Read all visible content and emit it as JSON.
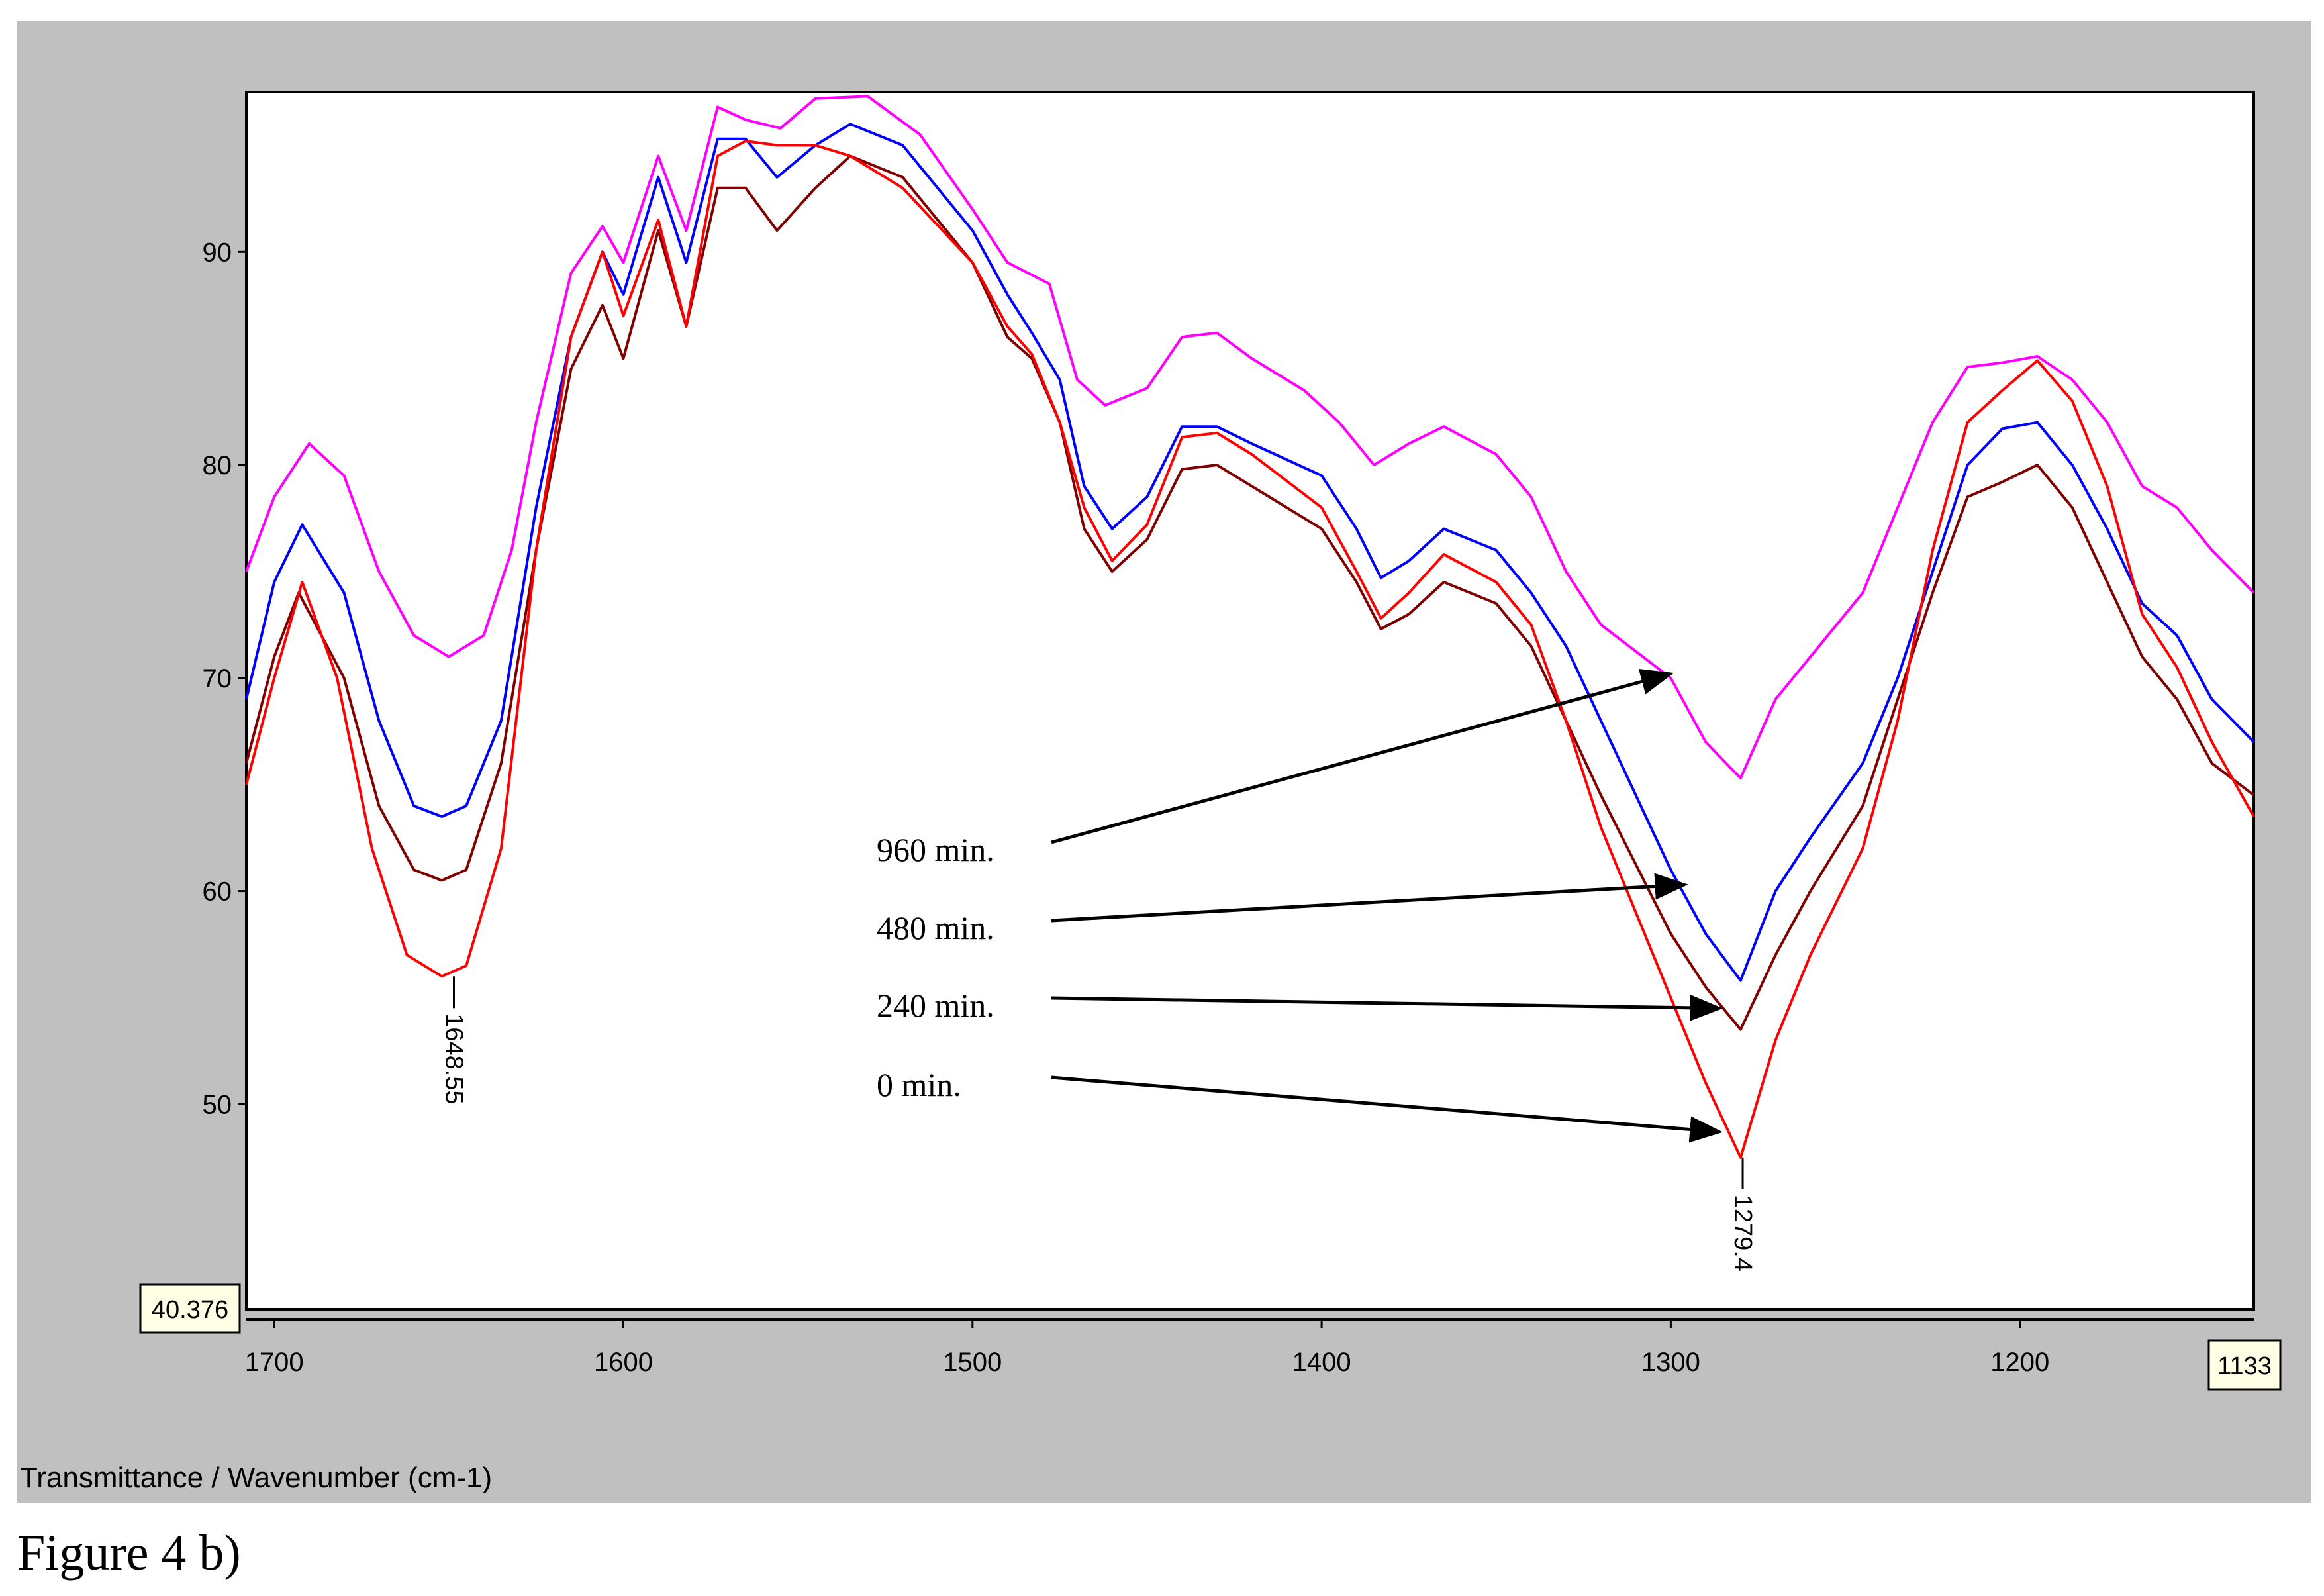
{
  "chart_data": {
    "type": "line",
    "x_axis_reversed": true,
    "xlim": [
      1708,
      1133
    ],
    "ylim": [
      40.376,
      97.5
    ],
    "x_ticks": [
      1700,
      1600,
      1500,
      1400,
      1300,
      1200
    ],
    "y_ticks": [
      50,
      60,
      70,
      80,
      90
    ],
    "x_min_readout": "1133",
    "y_min_readout": "40.376",
    "axis_caption": "Transmittance / Wavenumber (cm-1)",
    "figure_caption": "Figure 4 b)",
    "grid": false,
    "series": [
      {
        "name": "960 min.",
        "color": "#ff00ff",
        "points": [
          [
            1708,
            75
          ],
          [
            1700,
            78.5
          ],
          [
            1690,
            81
          ],
          [
            1680,
            79.5
          ],
          [
            1670,
            75
          ],
          [
            1660,
            72
          ],
          [
            1650,
            71
          ],
          [
            1640,
            72
          ],
          [
            1632,
            76
          ],
          [
            1625,
            82
          ],
          [
            1615,
            89
          ],
          [
            1606,
            91.2
          ],
          [
            1600,
            89.5
          ],
          [
            1590,
            94.5
          ],
          [
            1582,
            91
          ],
          [
            1573,
            96.8
          ],
          [
            1565,
            96.2
          ],
          [
            1555,
            95.8
          ],
          [
            1545,
            97.2
          ],
          [
            1530,
            97.3
          ],
          [
            1515,
            95.5
          ],
          [
            1500,
            92
          ],
          [
            1490,
            89.5
          ],
          [
            1478,
            88.5
          ],
          [
            1470,
            84
          ],
          [
            1462,
            82.8
          ],
          [
            1450,
            83.6
          ],
          [
            1440,
            86
          ],
          [
            1430,
            86.2
          ],
          [
            1420,
            85
          ],
          [
            1405,
            83.5
          ],
          [
            1395,
            82
          ],
          [
            1385,
            80
          ],
          [
            1375,
            81
          ],
          [
            1365,
            81.8
          ],
          [
            1350,
            80.5
          ],
          [
            1340,
            78.5
          ],
          [
            1330,
            75
          ],
          [
            1320,
            72.5
          ],
          [
            1300,
            70
          ],
          [
            1290,
            67
          ],
          [
            1280,
            65.3
          ],
          [
            1270,
            69
          ],
          [
            1260,
            71
          ],
          [
            1245,
            74
          ],
          [
            1235,
            78
          ],
          [
            1225,
            82
          ],
          [
            1215,
            84.6
          ],
          [
            1205,
            84.8
          ],
          [
            1195,
            85.1
          ],
          [
            1185,
            84
          ],
          [
            1175,
            82
          ],
          [
            1165,
            79
          ],
          [
            1155,
            78
          ],
          [
            1145,
            76
          ],
          [
            1133,
            74
          ]
        ]
      },
      {
        "name": "480 min.",
        "color": "#0000ff",
        "points": [
          [
            1708,
            69
          ],
          [
            1700,
            74.5
          ],
          [
            1692,
            77.2
          ],
          [
            1680,
            74
          ],
          [
            1670,
            68
          ],
          [
            1660,
            64
          ],
          [
            1652,
            63.5
          ],
          [
            1645,
            64
          ],
          [
            1635,
            68
          ],
          [
            1625,
            78
          ],
          [
            1615,
            86
          ],
          [
            1606,
            90
          ],
          [
            1600,
            88
          ],
          [
            1590,
            93.5
          ],
          [
            1582,
            89.5
          ],
          [
            1573,
            95.3
          ],
          [
            1565,
            95.3
          ],
          [
            1556,
            93.5
          ],
          [
            1545,
            95
          ],
          [
            1535,
            96
          ],
          [
            1520,
            95
          ],
          [
            1500,
            91
          ],
          [
            1490,
            88
          ],
          [
            1483,
            86.2
          ],
          [
            1475,
            84
          ],
          [
            1468,
            79
          ],
          [
            1460,
            77
          ],
          [
            1450,
            78.5
          ],
          [
            1440,
            81.8
          ],
          [
            1430,
            81.8
          ],
          [
            1420,
            81
          ],
          [
            1400,
            79.5
          ],
          [
            1390,
            77
          ],
          [
            1383,
            74.7
          ],
          [
            1375,
            75.5
          ],
          [
            1365,
            77
          ],
          [
            1350,
            76
          ],
          [
            1340,
            74
          ],
          [
            1330,
            71.5
          ],
          [
            1320,
            68
          ],
          [
            1300,
            61
          ],
          [
            1290,
            58
          ],
          [
            1280,
            55.8
          ],
          [
            1270,
            60
          ],
          [
            1260,
            62.5
          ],
          [
            1245,
            66
          ],
          [
            1235,
            70
          ],
          [
            1225,
            75
          ],
          [
            1215,
            80
          ],
          [
            1205,
            81.7
          ],
          [
            1195,
            82
          ],
          [
            1185,
            80
          ],
          [
            1175,
            77
          ],
          [
            1165,
            73.5
          ],
          [
            1155,
            72
          ],
          [
            1145,
            69
          ],
          [
            1133,
            67
          ]
        ]
      },
      {
        "name": "240 min.",
        "color": "#800000",
        "points": [
          [
            1708,
            66
          ],
          [
            1700,
            71
          ],
          [
            1693,
            74
          ],
          [
            1680,
            70
          ],
          [
            1670,
            64
          ],
          [
            1660,
            61
          ],
          [
            1652,
            60.5
          ],
          [
            1645,
            61
          ],
          [
            1635,
            66
          ],
          [
            1625,
            76
          ],
          [
            1615,
            84.5
          ],
          [
            1606,
            87.5
          ],
          [
            1600,
            85
          ],
          [
            1590,
            91
          ],
          [
            1582,
            86.5
          ],
          [
            1573,
            93
          ],
          [
            1565,
            93
          ],
          [
            1556,
            91
          ],
          [
            1545,
            93
          ],
          [
            1535,
            94.5
          ],
          [
            1520,
            93.5
          ],
          [
            1500,
            89.5
          ],
          [
            1490,
            86
          ],
          [
            1483,
            85
          ],
          [
            1475,
            82
          ],
          [
            1468,
            77
          ],
          [
            1460,
            75
          ],
          [
            1450,
            76.5
          ],
          [
            1440,
            79.8
          ],
          [
            1430,
            80
          ],
          [
            1420,
            79
          ],
          [
            1400,
            77
          ],
          [
            1390,
            74.5
          ],
          [
            1383,
            72.3
          ],
          [
            1375,
            73
          ],
          [
            1365,
            74.5
          ],
          [
            1350,
            73.5
          ],
          [
            1340,
            71.5
          ],
          [
            1330,
            68
          ],
          [
            1320,
            64.5
          ],
          [
            1300,
            58
          ],
          [
            1290,
            55.5
          ],
          [
            1280,
            53.5
          ],
          [
            1270,
            57
          ],
          [
            1260,
            60
          ],
          [
            1245,
            64
          ],
          [
            1235,
            69
          ],
          [
            1225,
            74
          ],
          [
            1215,
            78.5
          ],
          [
            1205,
            79.2
          ],
          [
            1195,
            80
          ],
          [
            1185,
            78
          ],
          [
            1175,
            74.5
          ],
          [
            1165,
            71
          ],
          [
            1155,
            69
          ],
          [
            1145,
            66
          ],
          [
            1133,
            64.5
          ]
        ]
      },
      {
        "name": "0 min.",
        "color": "#ff0000",
        "points": [
          [
            1708,
            65
          ],
          [
            1700,
            70
          ],
          [
            1692,
            74.5
          ],
          [
            1682,
            70
          ],
          [
            1672,
            62
          ],
          [
            1662,
            57
          ],
          [
            1652,
            56
          ],
          [
            1645,
            56.5
          ],
          [
            1635,
            62
          ],
          [
            1625,
            76
          ],
          [
            1615,
            86
          ],
          [
            1606,
            90
          ],
          [
            1600,
            87
          ],
          [
            1590,
            91.5
          ],
          [
            1582,
            86.5
          ],
          [
            1573,
            94.5
          ],
          [
            1565,
            95.2
          ],
          [
            1556,
            95
          ],
          [
            1545,
            95
          ],
          [
            1535,
            94.5
          ],
          [
            1520,
            93
          ],
          [
            1500,
            89.5
          ],
          [
            1490,
            86.5
          ],
          [
            1483,
            85.2
          ],
          [
            1475,
            82
          ],
          [
            1468,
            78
          ],
          [
            1460,
            75.5
          ],
          [
            1450,
            77.2
          ],
          [
            1440,
            81.3
          ],
          [
            1430,
            81.5
          ],
          [
            1420,
            80.5
          ],
          [
            1400,
            78
          ],
          [
            1390,
            75
          ],
          [
            1383,
            72.8
          ],
          [
            1375,
            74
          ],
          [
            1365,
            75.8
          ],
          [
            1350,
            74.5
          ],
          [
            1340,
            72.5
          ],
          [
            1330,
            68
          ],
          [
            1320,
            63
          ],
          [
            1300,
            55
          ],
          [
            1290,
            51
          ],
          [
            1280,
            47.5
          ],
          [
            1270,
            53
          ],
          [
            1260,
            57
          ],
          [
            1245,
            62
          ],
          [
            1235,
            68
          ],
          [
            1225,
            76
          ],
          [
            1215,
            82
          ],
          [
            1205,
            83.5
          ],
          [
            1195,
            84.9
          ],
          [
            1185,
            83
          ],
          [
            1175,
            79
          ],
          [
            1165,
            73
          ],
          [
            1155,
            70.5
          ],
          [
            1145,
            67
          ],
          [
            1133,
            63.5
          ]
        ]
      }
    ],
    "peak_labels": [
      {
        "x": 1648.55,
        "y": 56.0,
        "text": "1648.55"
      },
      {
        "x": 1279.4,
        "y": 47.5,
        "text": "1279.4"
      }
    ],
    "annotations": [
      {
        "text": "960 min.",
        "target_x": 1300,
        "target_y": 70.2
      },
      {
        "text": "480 min.",
        "target_x": 1296,
        "target_y": 60.3
      },
      {
        "text": "240 min.",
        "target_x": 1286,
        "target_y": 54.5
      },
      {
        "text": "0 min.",
        "target_x": 1286,
        "target_y": 48.7
      }
    ]
  }
}
